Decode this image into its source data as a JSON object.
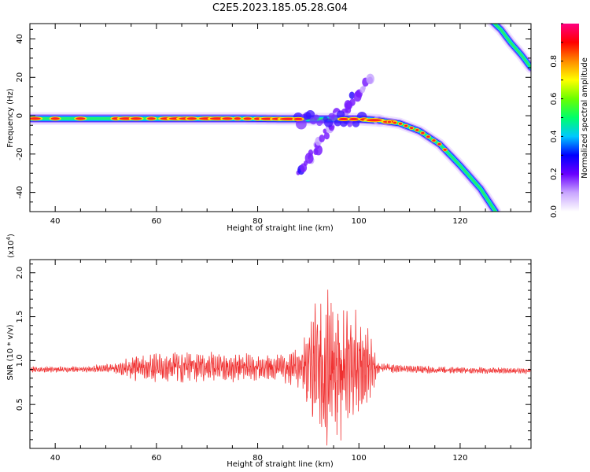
{
  "title": "C2E5.2023.185.05.28.G04",
  "chart_data": [
    {
      "type": "heatmap",
      "xlabel": "Height of straight line (km)",
      "ylabel": "Frequency (Hz)",
      "xlim": [
        35,
        134
      ],
      "ylim": [
        -50,
        48
      ],
      "xticks": [
        "40",
        "60",
        "80",
        "100",
        "120"
      ],
      "yticks": [
        "40",
        "20",
        "0",
        "-20",
        "-40"
      ],
      "colorbar": {
        "label": "Normalized spectral amplitude",
        "ticks": [
          "0.0",
          "0.2",
          "0.4",
          "0.6",
          "0.8"
        ],
        "range": [
          0,
          1
        ],
        "colormap": [
          "#ffffff",
          "#c9a6ff",
          "#6a00ff",
          "#0000ff",
          "#00c8ff",
          "#00ff6a",
          "#6aff00",
          "#ffff00",
          "#ff8c00",
          "#ff0000",
          "#ff0080"
        ]
      },
      "traces": [
        {
          "desc": "main carrier",
          "x": [
            35,
            55,
            75,
            90,
            100,
            104
          ],
          "y": [
            -1.5,
            -1.5,
            -1.5,
            -1.8,
            -1.8,
            -2.5
          ]
        },
        {
          "desc": "descending curve",
          "x": [
            104,
            108,
            112,
            116,
            120,
            124,
            127
          ],
          "y": [
            -2.5,
            -4,
            -8,
            -15,
            -26,
            -38,
            -50
          ]
        },
        {
          "desc": "diagonal branch",
          "x": [
            88,
            92,
            96,
            100,
            102
          ],
          "y": [
            -30,
            -15,
            0,
            12,
            18
          ]
        },
        {
          "desc": "top-right curve",
          "x": [
            126,
            128,
            130,
            132,
            134
          ],
          "y": [
            50,
            45,
            38,
            32,
            25
          ]
        }
      ]
    },
    {
      "type": "line",
      "xlabel": "Height of straight line (km)",
      "ylabel": "SNR (10 * v/v)",
      "multiplier": "(x10",
      "multiplier_exp": "4",
      "multiplier_close": ")",
      "xlim": [
        35,
        134
      ],
      "ylim": [
        0,
        2.15
      ],
      "xticks": [
        "40",
        "60",
        "80",
        "100",
        "120"
      ],
      "yticks": [
        "2.0",
        "1.5",
        "1.0",
        "0.5"
      ],
      "color": "#f03030",
      "envelope": {
        "x": [
          35,
          45,
          52,
          54,
          56,
          60,
          65,
          70,
          75,
          80,
          85,
          88,
          90,
          92,
          94,
          96,
          98,
          100,
          102,
          104,
          110,
          120,
          134
        ],
        "baseline": [
          0.9,
          0.9,
          0.91,
          0.92,
          0.92,
          0.92,
          0.92,
          0.93,
          0.92,
          0.92,
          0.91,
          0.92,
          0.95,
          0.9,
          0.85,
          0.85,
          0.95,
          0.95,
          0.92,
          0.92,
          0.9,
          0.89,
          0.88
        ],
        "amplitude": [
          0.03,
          0.03,
          0.05,
          0.12,
          0.13,
          0.14,
          0.15,
          0.15,
          0.14,
          0.14,
          0.15,
          0.2,
          0.45,
          0.7,
          0.85,
          0.75,
          0.5,
          0.6,
          0.35,
          0.05,
          0.04,
          0.03,
          0.03
        ]
      }
    }
  ]
}
